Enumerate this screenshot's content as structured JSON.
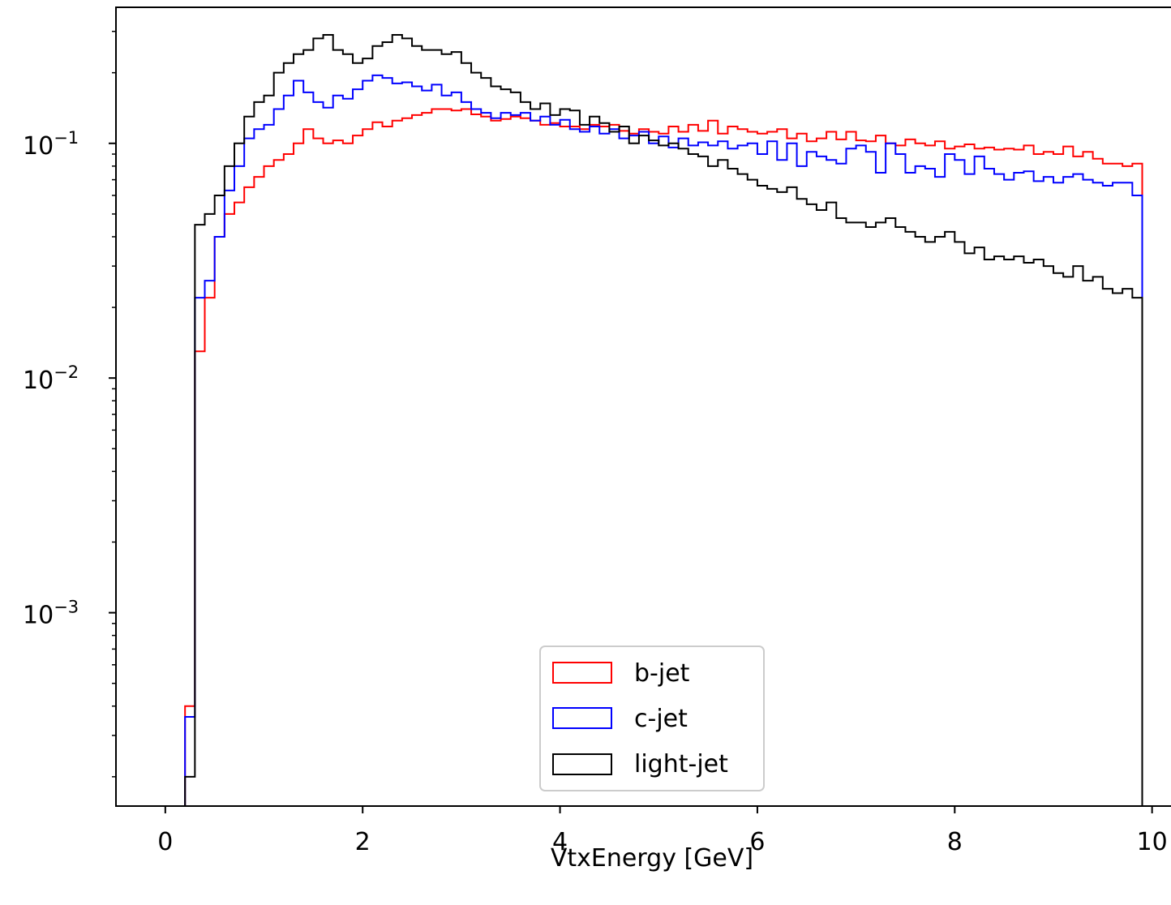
{
  "chart_data": {
    "type": "histogram-step",
    "title": "",
    "xlabel": "VtxEnergy [GeV]",
    "ylabel": "",
    "xlim": [
      -0.5,
      10.2
    ],
    "ylim": [
      0.00015,
      0.38
    ],
    "yscale": "log",
    "grid": false,
    "legend_position": "lower center",
    "x_ticks": [
      0,
      2,
      4,
      6,
      8,
      10
    ],
    "x_tick_labels": [
      "0",
      "2",
      "4",
      "6",
      "8",
      "10"
    ],
    "y_ticks": [
      0.001,
      0.01,
      0.1
    ],
    "y_tick_labels": [
      {
        "base": "10",
        "exp": "−3"
      },
      {
        "base": "10",
        "exp": "−2"
      },
      {
        "base": "10",
        "exp": "−1"
      }
    ],
    "bins": {
      "start": 0.2,
      "width": 0.1,
      "count": 97
    },
    "series": [
      {
        "name": "b-jet",
        "color": "#ff0000",
        "values": [
          0.0004,
          0.013,
          0.022,
          0.04,
          0.05,
          0.056,
          0.065,
          0.072,
          0.08,
          0.085,
          0.09,
          0.1,
          0.115,
          0.105,
          0.1,
          0.103,
          0.1,
          0.108,
          0.115,
          0.123,
          0.118,
          0.125,
          0.128,
          0.132,
          0.135,
          0.14,
          0.14,
          0.138,
          0.14,
          0.133,
          0.13,
          0.125,
          0.127,
          0.13,
          0.128,
          0.125,
          0.12,
          0.122,
          0.118,
          0.118,
          0.115,
          0.12,
          0.118,
          0.12,
          0.113,
          0.11,
          0.115,
          0.112,
          0.11,
          0.118,
          0.112,
          0.12,
          0.113,
          0.125,
          0.11,
          0.118,
          0.115,
          0.112,
          0.11,
          0.112,
          0.115,
          0.105,
          0.11,
          0.102,
          0.105,
          0.112,
          0.104,
          0.112,
          0.103,
          0.102,
          0.108,
          0.1,
          0.098,
          0.104,
          0.1,
          0.098,
          0.102,
          0.095,
          0.097,
          0.099,
          0.095,
          0.096,
          0.094,
          0.095,
          0.094,
          0.098,
          0.09,
          0.092,
          0.09,
          0.097,
          0.088,
          0.092,
          0.086,
          0.082,
          0.082,
          0.08,
          0.082
        ]
      },
      {
        "name": "c-jet",
        "color": "#0000ff",
        "values": [
          0.00036,
          0.022,
          0.026,
          0.04,
          0.063,
          0.08,
          0.105,
          0.115,
          0.12,
          0.14,
          0.16,
          0.185,
          0.165,
          0.15,
          0.142,
          0.16,
          0.155,
          0.17,
          0.185,
          0.195,
          0.19,
          0.18,
          0.182,
          0.175,
          0.168,
          0.178,
          0.16,
          0.165,
          0.15,
          0.14,
          0.135,
          0.128,
          0.135,
          0.132,
          0.135,
          0.125,
          0.13,
          0.12,
          0.126,
          0.115,
          0.112,
          0.118,
          0.11,
          0.115,
          0.105,
          0.108,
          0.112,
          0.1,
          0.107,
          0.096,
          0.105,
          0.098,
          0.101,
          0.098,
          0.102,
          0.095,
          0.098,
          0.1,
          0.09,
          0.102,
          0.085,
          0.1,
          0.08,
          0.092,
          0.088,
          0.085,
          0.082,
          0.095,
          0.098,
          0.092,
          0.075,
          0.1,
          0.09,
          0.075,
          0.08,
          0.078,
          0.072,
          0.09,
          0.085,
          0.074,
          0.088,
          0.078,
          0.074,
          0.07,
          0.075,
          0.076,
          0.069,
          0.072,
          0.068,
          0.072,
          0.074,
          0.07,
          0.068,
          0.066,
          0.068,
          0.068,
          0.06
        ]
      },
      {
        "name": "light-jet",
        "color": "#000000",
        "values": [
          0.0002,
          0.045,
          0.05,
          0.06,
          0.08,
          0.1,
          0.13,
          0.15,
          0.16,
          0.2,
          0.22,
          0.24,
          0.25,
          0.28,
          0.29,
          0.25,
          0.24,
          0.22,
          0.23,
          0.26,
          0.27,
          0.29,
          0.28,
          0.26,
          0.25,
          0.25,
          0.24,
          0.245,
          0.22,
          0.2,
          0.19,
          0.175,
          0.17,
          0.165,
          0.15,
          0.14,
          0.148,
          0.132,
          0.14,
          0.138,
          0.12,
          0.13,
          0.122,
          0.112,
          0.118,
          0.1,
          0.108,
          0.103,
          0.098,
          0.1,
          0.095,
          0.09,
          0.088,
          0.08,
          0.085,
          0.078,
          0.074,
          0.07,
          0.066,
          0.064,
          0.062,
          0.065,
          0.058,
          0.055,
          0.052,
          0.056,
          0.048,
          0.046,
          0.046,
          0.044,
          0.046,
          0.048,
          0.044,
          0.042,
          0.04,
          0.038,
          0.04,
          0.042,
          0.038,
          0.034,
          0.036,
          0.032,
          0.033,
          0.032,
          0.033,
          0.031,
          0.032,
          0.03,
          0.028,
          0.027,
          0.03,
          0.026,
          0.027,
          0.024,
          0.023,
          0.024,
          0.022
        ]
      }
    ]
  }
}
